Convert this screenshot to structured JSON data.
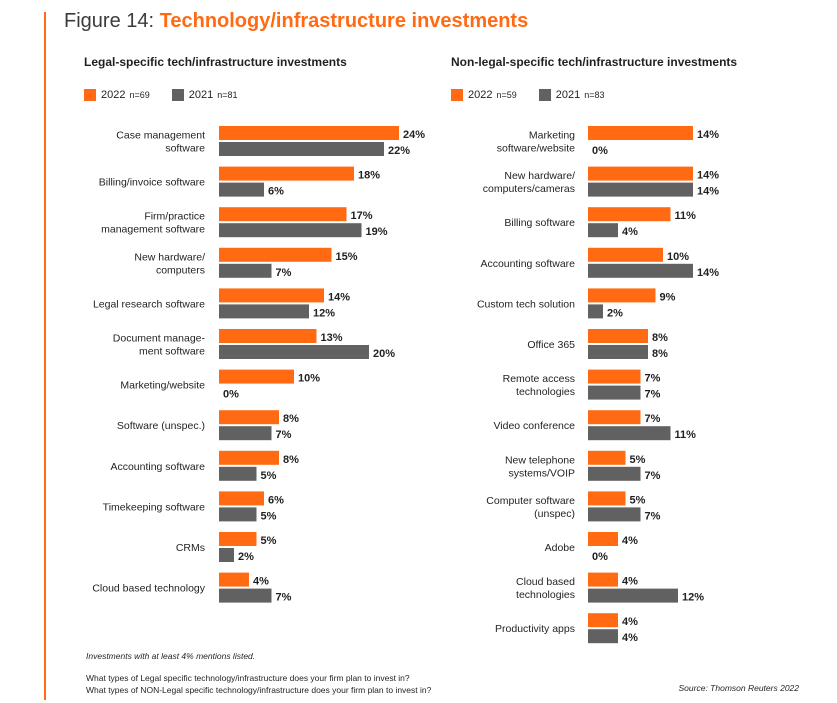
{
  "figure": {
    "number": "Figure 14:",
    "title": "Technology/infrastructure investments"
  },
  "colors": {
    "y2022": "#ff6a13",
    "y2021": "#616161",
    "accent": "#ff6a13"
  },
  "legend_left": {
    "a_label": "2022",
    "a_n": "n=69",
    "b_label": "2021",
    "b_n": "n=81"
  },
  "legend_right": {
    "a_label": "2022",
    "a_n": "n=59",
    "b_label": "2021",
    "b_n": "n=83"
  },
  "chart_data": [
    {
      "type": "bar",
      "orientation": "horizontal",
      "title": "Legal-specific tech/infrastructure investments",
      "unit": "%",
      "categories": [
        [
          "Case management",
          "software"
        ],
        [
          "Billing/invoice software"
        ],
        [
          "Firm/practice",
          "management software"
        ],
        [
          "New hardware/",
          "computers"
        ],
        [
          "Legal research software"
        ],
        [
          "Document manage-",
          "ment software"
        ],
        [
          "Marketing/website"
        ],
        [
          "Software (unspec.)"
        ],
        [
          "Accounting software"
        ],
        [
          "Timekeeping software"
        ],
        [
          "CRMs"
        ],
        [
          "Cloud based technology"
        ]
      ],
      "series": [
        {
          "name": "2022 n=69",
          "values": [
            24,
            18,
            17,
            15,
            14,
            13,
            10,
            8,
            8,
            6,
            5,
            4
          ]
        },
        {
          "name": "2021 n=81",
          "values": [
            22,
            6,
            19,
            7,
            12,
            20,
            0,
            7,
            5,
            5,
            2,
            7
          ]
        }
      ]
    },
    {
      "type": "bar",
      "orientation": "horizontal",
      "title": "Non-legal-specific tech/infrastructure investments",
      "unit": "%",
      "categories": [
        [
          "Marketing",
          "software/website"
        ],
        [
          "New hardware/",
          "computers/cameras"
        ],
        [
          "Billing software"
        ],
        [
          "Accounting software"
        ],
        [
          "Custom tech solution"
        ],
        [
          "Office 365"
        ],
        [
          "Remote access",
          "technologies"
        ],
        [
          "Video conference"
        ],
        [
          "New telephone",
          "systems/VOIP"
        ],
        [
          "Computer software",
          "(unspec)"
        ],
        [
          "Adobe"
        ],
        [
          "Cloud based",
          "technologies"
        ],
        [
          "Productivity apps"
        ]
      ],
      "series": [
        {
          "name": "2022 n=59",
          "values": [
            14,
            14,
            11,
            10,
            9,
            8,
            7,
            7,
            5,
            5,
            4,
            4,
            4
          ]
        },
        {
          "name": "2021 n=83",
          "values": [
            0,
            14,
            4,
            14,
            2,
            8,
            7,
            11,
            7,
            7,
            0,
            12,
            4
          ]
        }
      ]
    }
  ],
  "notes": {
    "mentions": "Investments with at least 4% mentions listed.",
    "q1": "What types of Legal specific technology/infrastructure does your firm plan to invest in?",
    "q2": "What types of NON-Legal specific technology/infrastructure does your firm plan to invest in?",
    "source": "Source: Thomson Reuters 2022"
  }
}
